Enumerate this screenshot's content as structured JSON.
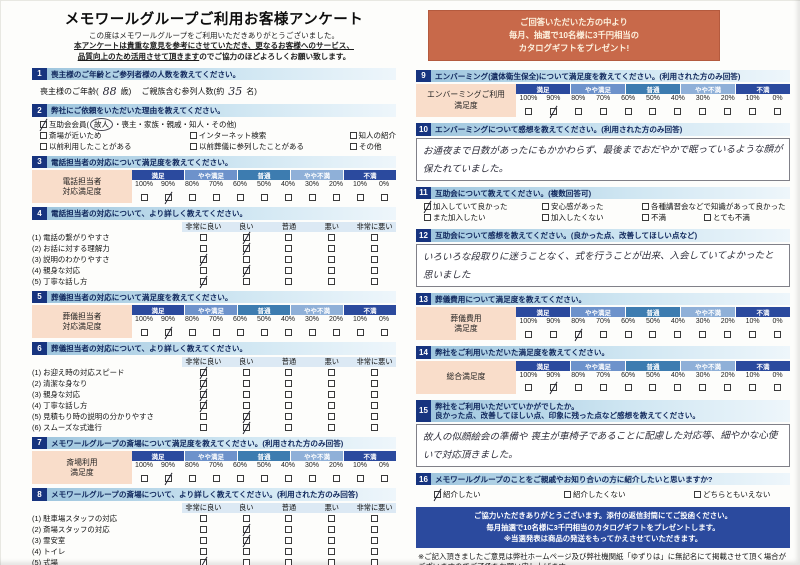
{
  "header": {
    "title": "メモワールグループご利用お客様アンケート",
    "line1": "この度はメモワールグループをご利用いただきありがとうございました。",
    "line2": "本アンケートは貴重な意見を参考にさせていただき、更なるお客様へのサービス、",
    "line3_underline": "品質向上のため活用させて頂きます",
    "line3_rest": "のでご協力のほどよろしくお願い致します。"
  },
  "gift_box": {
    "line1": "ご回答いただいた方の中より",
    "line2": "毎月、抽選で10名様に3千円相当の",
    "line3": "カタログギフトをプレゼント!"
  },
  "scale_labels": [
    "満足",
    "やや満足",
    "普通",
    "やや不満",
    "不満"
  ],
  "percent_labels": [
    "100%",
    "90%",
    "80%",
    "70%",
    "60%",
    "50%",
    "40%",
    "30%",
    "20%",
    "10%",
    "0%"
  ],
  "detail_headers": [
    "非常に良い",
    "良い",
    "普通",
    "悪い",
    "非常に悪い"
  ],
  "s1": {
    "num": "1",
    "title": "喪主様のご年齢とご参列者様の人数を教えてください。",
    "pre": "喪主様のご年齢(",
    "age": "88",
    "mid": "歳)　 ご親族含む参列人数(約",
    "count": "35",
    "post": "名)"
  },
  "s2": {
    "num": "2",
    "title": "弊社にご依頼をいただいた理由を教えてください。",
    "sep": "・",
    "member_pre": "互助会会員(",
    "member_post": ")",
    "member_checked": true,
    "opts": [
      "故人",
      "喪主",
      "家族",
      "親戚",
      "知人",
      "その他"
    ],
    "row2": [
      {
        "label": "斎場が近いため",
        "checked": false
      },
      {
        "label": "インターネット検索",
        "checked": false
      },
      {
        "label": "知人の紹介",
        "checked": false
      }
    ],
    "row3": [
      {
        "label": "以前利用したことがある",
        "checked": false
      },
      {
        "label": "以前葬儀に参列したことがある",
        "checked": false
      },
      {
        "label": "その他",
        "checked": false
      }
    ]
  },
  "s3": {
    "num": "3",
    "title": "電話担当者の対応について満足度を教えてください。",
    "label1": "電話担当者",
    "label2": "対応満足度",
    "boxes": [
      false,
      true,
      false,
      false,
      false,
      false,
      false,
      false,
      false,
      false,
      false
    ]
  },
  "s4": {
    "num": "4",
    "title": "電話担当者の対応について、より詳しく教えてください。",
    "rows": [
      {
        "label": "(1) 電話の繋がりやすさ",
        "checks": [
          false,
          true,
          false,
          false,
          false
        ]
      },
      {
        "label": "(2) お話に対する理解力",
        "checks": [
          false,
          true,
          false,
          false,
          false
        ]
      },
      {
        "label": "(3) 説明のわかりやすさ",
        "checks": [
          true,
          false,
          false,
          false,
          false
        ]
      },
      {
        "label": "(4) 親身な対応",
        "checks": [
          false,
          true,
          false,
          false,
          false
        ]
      },
      {
        "label": "(5) 丁寧な話し方",
        "checks": [
          true,
          false,
          false,
          false,
          false
        ]
      }
    ]
  },
  "s5": {
    "num": "5",
    "title": "葬儀担当者の対応について満足度を教えてください。",
    "label1": "葬儀担当者",
    "label2": "対応満足度",
    "boxes": [
      false,
      true,
      false,
      false,
      false,
      false,
      false,
      false,
      false,
      false,
      false
    ]
  },
  "s6": {
    "num": "6",
    "title": "葬儀担当者の対応について、より詳しく教えてください。",
    "rows": [
      {
        "label": "(1) お迎え時の対応スピード",
        "checks": [
          true,
          false,
          false,
          false,
          false
        ]
      },
      {
        "label": "(2) 清潔な身なり",
        "checks": [
          true,
          false,
          false,
          false,
          false
        ]
      },
      {
        "label": "(3) 親身な対応",
        "checks": [
          true,
          false,
          false,
          false,
          false
        ]
      },
      {
        "label": "(4) 丁寧な話し方",
        "checks": [
          true,
          false,
          false,
          false,
          false
        ]
      },
      {
        "label": "(5) 見積もり時の説明の分かりやすさ",
        "checks": [
          false,
          true,
          false,
          false,
          false
        ]
      },
      {
        "label": "(6) スムーズな式進行",
        "checks": [
          false,
          true,
          false,
          false,
          false
        ]
      }
    ]
  },
  "s7": {
    "num": "7",
    "title": "メモワールグループの斎場について満足度を教えてください。(利用された方のみ回答)",
    "label1": "斎場利用",
    "label2": "満足度",
    "boxes": [
      false,
      true,
      false,
      false,
      false,
      false,
      false,
      false,
      false,
      false,
      false
    ]
  },
  "s8": {
    "num": "8",
    "title": "メモワールグループの斎場について、より詳しく教えてください。(利用された方のみ回答)",
    "rows": [
      {
        "label": "(1) 駐車場スタッフの対応",
        "checks": [
          false,
          false,
          false,
          false,
          false
        ]
      },
      {
        "label": "(2) 斎場スタッフの対応",
        "checks": [
          false,
          true,
          false,
          false,
          false
        ]
      },
      {
        "label": "(3) 霊安室",
        "checks": [
          false,
          true,
          false,
          false,
          false
        ]
      },
      {
        "label": "(4) トイレ",
        "checks": [
          false,
          false,
          false,
          false,
          false
        ]
      },
      {
        "label": "(5) 式場",
        "checks": [
          true,
          false,
          false,
          false,
          false
        ]
      },
      {
        "label": "(6) 親族控室",
        "checks": [
          false,
          false,
          true,
          false,
          false
        ]
      },
      {
        "label": "(7) 料理",
        "checks": [
          false,
          true,
          false,
          false,
          false
        ]
      }
    ]
  },
  "s9": {
    "num": "9",
    "title": "エンバーミング(遺体衛生保全)について満足度を教えてください。(利用された方のみ回答)",
    "label1": "エンバーミングご利用",
    "label2": "満足度",
    "boxes": [
      false,
      true,
      false,
      false,
      false,
      false,
      false,
      false,
      false,
      false,
      false
    ]
  },
  "s10": {
    "num": "10",
    "title": "エンバーミングについて感想を教えてください。(利用された方のみ回答)",
    "note": "お通夜まで日数があったにもかかわらず、最後までおだやかで眠っているような顔が保たれていました。"
  },
  "s11": {
    "num": "11",
    "title": "互助会について教えてください。(複数回答可)",
    "row1": [
      {
        "label": "加入していて良かった",
        "checked": true
      },
      {
        "label": "安心感があった",
        "checked": false
      },
      {
        "label": "各種講習会などで知識があって良かった",
        "checked": false
      }
    ],
    "row2": [
      {
        "label": "また加入したい",
        "checked": false
      },
      {
        "label": "加入したくない",
        "checked": false
      },
      {
        "label": "不満",
        "checked": false
      },
      {
        "label": "とても不満",
        "checked": false
      }
    ]
  },
  "s12": {
    "num": "12",
    "title": "互助会について感想を教えてください。(良かった点、改善してほしい点など)",
    "note": "いろいろな段取りに迷うことなく、式を行うことが出来、入会していてよかったと思いました"
  },
  "s13": {
    "num": "13",
    "title": "葬儀費用について満足度を教えてください。",
    "label1": "葬儀費用",
    "label2": "満足度",
    "boxes": [
      false,
      false,
      true,
      false,
      false,
      false,
      false,
      false,
      false,
      false,
      false
    ]
  },
  "s14": {
    "num": "14",
    "title": "弊社をご利用いただいた満足度を教えてください。",
    "label1": "総合満足度",
    "label2": "",
    "boxes": [
      false,
      true,
      false,
      false,
      false,
      false,
      false,
      false,
      false,
      false,
      false
    ]
  },
  "s15": {
    "num": "15",
    "title1": "弊社をご利用いただいていかがでしたか。",
    "title2": "良かった点、改善してほしい点、印象に残った点など感想を教えてください。",
    "note": "故人の似顔絵会の準備や 喪主が車椅子であることに配慮した対応等、細やかな心使いで対応頂きました。"
  },
  "s16": {
    "num": "16",
    "title": "メモワールグループのことをご親戚やお知り合いの方に紹介したいと思いますか?",
    "opts": [
      {
        "label": "紹介したい",
        "checked": true
      },
      {
        "label": "紹介したくない",
        "checked": false
      },
      {
        "label": "どちらともいえない",
        "checked": false
      }
    ]
  },
  "footer_blue": {
    "line1": "ご協力いただきありがとうございます。添付の返信封筒にてご投函ください。",
    "line2": "毎月抽選で10名様に3千円相当のカタログギフトをプレゼントします。",
    "line3": "※当選発表は商品の発送をもってかえさせていただきます。"
  },
  "footer_note": "※ご記入頂きましたご意見は弊社ホームページ及び弊社機関紙「ゆずりは」に無記名にて掲載させて頂く場合がございますのでご了承をお願い申し上げます。",
  "colors": {
    "accent_blue": "#2b4a9e",
    "bar_blue": "#9fc6de",
    "label_pink": "#f9ddca",
    "gift_orange": "#c8694a"
  }
}
